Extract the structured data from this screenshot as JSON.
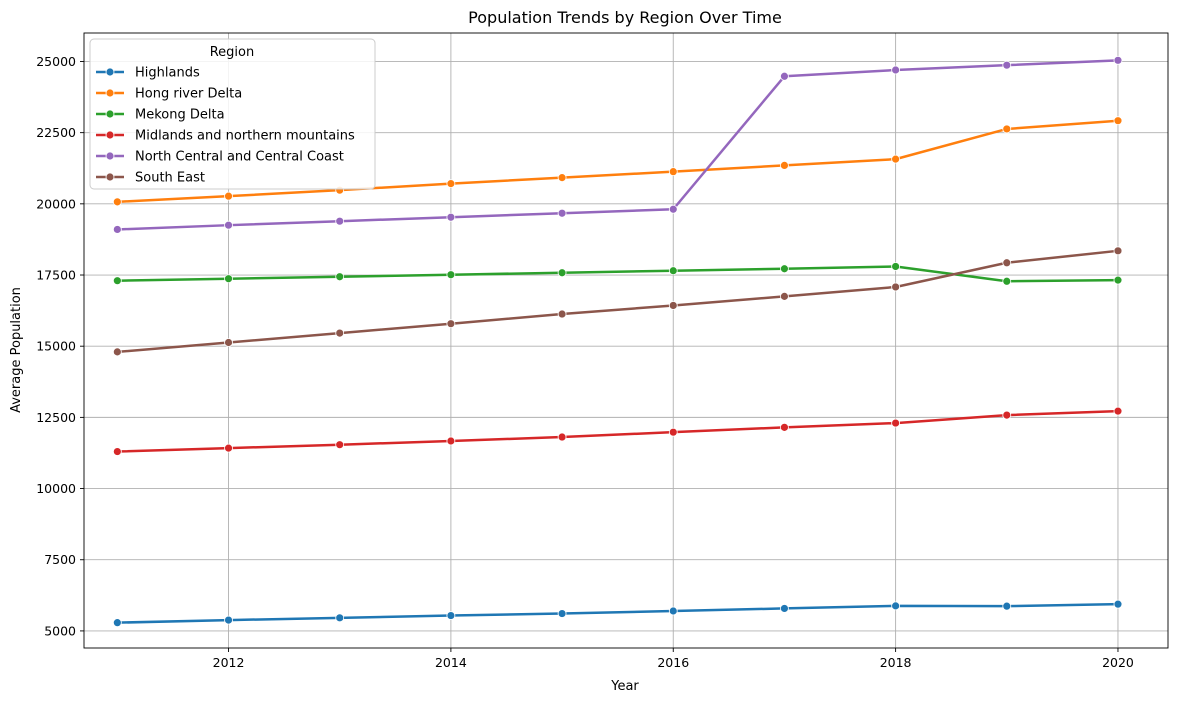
{
  "chart_data": {
    "type": "line",
    "title": "Population Trends by Region Over Time",
    "xlabel": "Year",
    "ylabel": "Average Population",
    "x": [
      2011,
      2012,
      2013,
      2014,
      2015,
      2016,
      2017,
      2018,
      2019,
      2020
    ],
    "xlim": [
      2010.7,
      2020.45
    ],
    "ylim": [
      4400,
      26000
    ],
    "xticks": [
      2012,
      2014,
      2016,
      2018,
      2020
    ],
    "yticks": [
      5000,
      7500,
      10000,
      12500,
      15000,
      17500,
      20000,
      22500,
      25000
    ],
    "grid": true,
    "legend": {
      "title": "Region",
      "position": "upper-left"
    },
    "series": [
      {
        "name": "Highlands",
        "color": "#1f77b4",
        "values": [
          5290,
          5380,
          5460,
          5540,
          5610,
          5700,
          5790,
          5880,
          5870,
          5940
        ]
      },
      {
        "name": "Hong river Delta",
        "color": "#ff7f0e",
        "values": [
          20070,
          20270,
          20480,
          20710,
          20920,
          21130,
          21350,
          21570,
          22630,
          22920
        ]
      },
      {
        "name": "Mekong Delta",
        "color": "#2ca02c",
        "values": [
          17300,
          17370,
          17440,
          17510,
          17580,
          17650,
          17720,
          17800,
          17280,
          17320
        ]
      },
      {
        "name": "Midlands and northern mountains",
        "color": "#d62728",
        "values": [
          11300,
          11420,
          11540,
          11670,
          11810,
          11980,
          12150,
          12300,
          12580,
          12720
        ]
      },
      {
        "name": "North Central and Central Coast",
        "color": "#9467bd",
        "values": [
          19100,
          19250,
          19390,
          19530,
          19670,
          19810,
          24480,
          24700,
          24870,
          25040
        ]
      },
      {
        "name": "South East",
        "color": "#8c564b",
        "values": [
          14800,
          15130,
          15460,
          15790,
          16130,
          16430,
          16750,
          17080,
          17930,
          18350
        ]
      }
    ]
  }
}
